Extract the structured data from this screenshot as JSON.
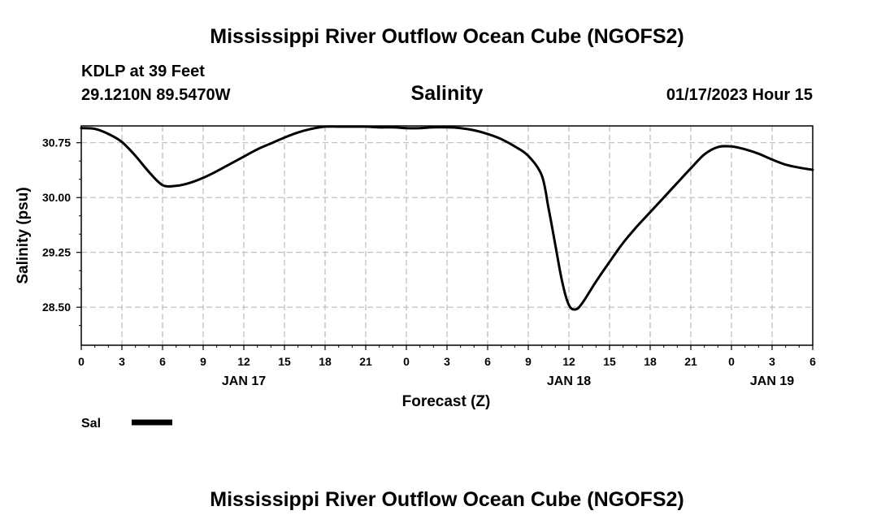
{
  "header": {
    "main_title": "Mississippi River Outflow Ocean Cube (NGOFS2)",
    "station": "KDLP at 39 Feet",
    "coords": "29.1210N  89.5470W",
    "timestamp": "01/17/2023 Hour 15"
  },
  "legend": {
    "label": "Sal",
    "position": "bottom-left"
  },
  "footer": {
    "title": "Mississippi River Outflow Ocean Cube (NGOFS2)"
  },
  "chart_data": {
    "type": "line",
    "title": "Salinity",
    "xlabel": "Forecast (Z)",
    "ylabel": "Salinity (psu)",
    "xlim": [
      0,
      54
    ],
    "ylim": [
      27.98,
      30.98
    ],
    "grid": true,
    "x_ticks": [
      0,
      3,
      6,
      9,
      12,
      15,
      18,
      21,
      24,
      27,
      30,
      33,
      36,
      39,
      42,
      45,
      48,
      51,
      54
    ],
    "x_tick_labels": [
      "0",
      "3",
      "6",
      "9",
      "12",
      "15",
      "18",
      "21",
      "0",
      "3",
      "6",
      "9",
      "12",
      "15",
      "18",
      "21",
      "0",
      "3",
      "6"
    ],
    "date_labels": [
      {
        "x": 12,
        "label": "JAN 17"
      },
      {
        "x": 36,
        "label": "JAN 18"
      },
      {
        "x": 51,
        "label": "JAN 19"
      }
    ],
    "y_ticks": [
      28.5,
      29.25,
      30.0,
      30.75
    ],
    "y_tick_labels": [
      "28.50",
      "29.25",
      "30.00",
      "30.75"
    ],
    "series": [
      {
        "name": "Sal",
        "color": "#000000",
        "x": [
          0,
          1,
          2,
          3,
          4,
          5,
          6,
          7,
          8,
          9,
          10,
          11,
          12,
          13,
          14,
          15,
          16,
          17,
          18,
          19,
          20,
          21,
          22,
          23,
          24,
          25,
          26,
          27,
          28,
          29,
          30,
          31,
          32,
          33,
          34,
          34.5,
          35,
          35.5,
          36,
          36.5,
          37,
          38,
          39,
          40,
          41,
          42,
          43,
          44,
          45,
          46,
          47,
          48,
          49,
          50,
          51,
          52,
          53,
          54
        ],
        "y": [
          30.95,
          30.94,
          30.87,
          30.76,
          30.57,
          30.35,
          30.17,
          30.16,
          30.2,
          30.27,
          30.36,
          30.46,
          30.56,
          30.66,
          30.74,
          30.82,
          30.89,
          30.94,
          30.97,
          30.97,
          30.97,
          30.97,
          30.96,
          30.96,
          30.95,
          30.95,
          30.96,
          30.96,
          30.95,
          30.92,
          30.87,
          30.8,
          30.7,
          30.57,
          30.3,
          29.85,
          29.35,
          28.85,
          28.53,
          28.47,
          28.56,
          28.85,
          29.12,
          29.38,
          29.6,
          29.8,
          30.0,
          30.2,
          30.4,
          30.59,
          30.69,
          30.7,
          30.66,
          30.6,
          30.52,
          30.45,
          30.41,
          30.38
        ]
      }
    ]
  }
}
